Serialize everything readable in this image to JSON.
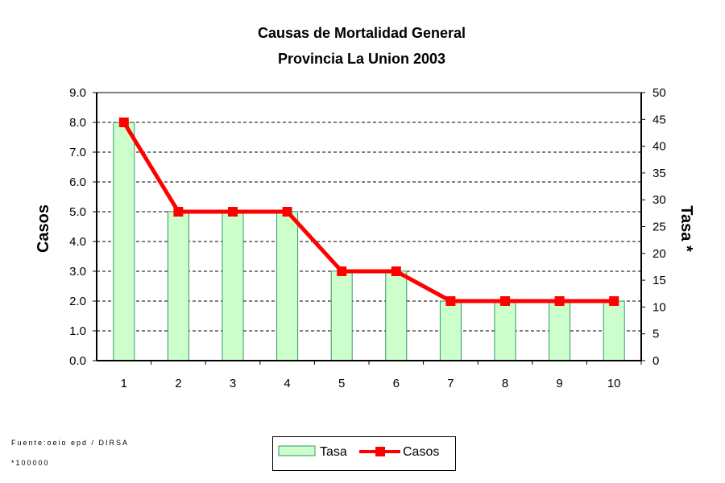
{
  "chart_data": {
    "type": "bar",
    "title": "Causas de Mortalidad General",
    "subtitle": "Provincia La Union 2003",
    "categories": [
      "1",
      "2",
      "3",
      "4",
      "5",
      "6",
      "7",
      "8",
      "9",
      "10"
    ],
    "series": [
      {
        "name": "Tasa",
        "type": "bar",
        "axis": "right",
        "color": "#ccffcc",
        "values": [
          44.4,
          27.8,
          27.8,
          27.8,
          16.7,
          16.7,
          11.1,
          11.1,
          11.1,
          11.1
        ]
      },
      {
        "name": "Casos",
        "type": "line",
        "axis": "left",
        "color": "#ff0000",
        "values": [
          8,
          5,
          5,
          5,
          3,
          3,
          2,
          2,
          2,
          2
        ]
      }
    ],
    "ylabel": "Casos",
    "ylim": [
      0,
      9
    ],
    "yticks": [
      "0.0",
      "1.0",
      "2.0",
      "3.0",
      "4.0",
      "5.0",
      "6.0",
      "7.0",
      "8.0",
      "9.0"
    ],
    "y2label": "Tasa *",
    "y2lim": [
      0,
      50
    ],
    "y2ticks": [
      "0",
      "5",
      "10",
      "15",
      "20",
      "25",
      "30",
      "35",
      "40",
      "45",
      "50"
    ],
    "grid": true,
    "legend": "bottom"
  },
  "footnotes": {
    "source": "Fuente:oeio epd / DIRSA",
    "note": "*100000"
  }
}
